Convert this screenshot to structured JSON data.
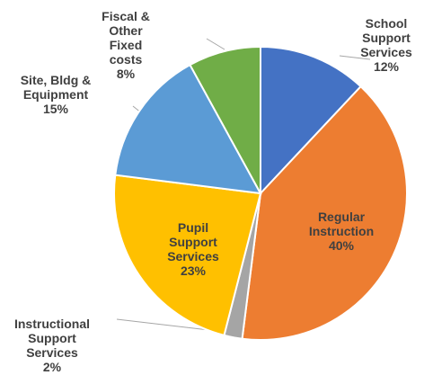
{
  "chart_data": {
    "type": "pie",
    "categories": [
      "School Support Services",
      "Regular Instruction",
      "Instructional Support Services",
      "Pupil Support Services",
      "Site, Bldg & Equipment",
      "Fiscal & Other Fixed costs"
    ],
    "values": [
      12,
      40,
      2,
      23,
      15,
      8
    ],
    "value_labels": [
      "12%",
      "40%",
      "2%",
      "23%",
      "15%",
      "8%"
    ],
    "colors": [
      "#4472c4",
      "#ed7d31",
      "#a5a5a5",
      "#ffc000",
      "#5b9bd5",
      "#70ad47"
    ]
  }
}
